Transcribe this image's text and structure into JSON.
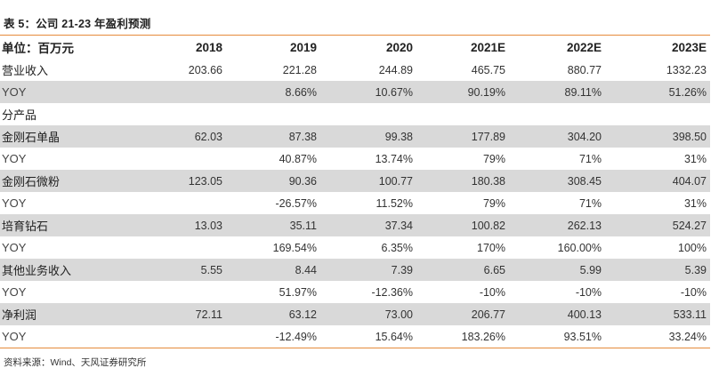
{
  "caption": "表 5：公司 21-23 年盈利预测",
  "header": [
    "单位：百万元",
    "2018",
    "2019",
    "2020",
    "2021E",
    "2022E",
    "2023E"
  ],
  "rows": [
    {
      "label": "营业收入",
      "values": [
        "203.66",
        "221.28",
        "244.89",
        "465.75",
        "880.77",
        "1332.23"
      ],
      "shaded": false
    },
    {
      "label": "YOY",
      "values": [
        "",
        "8.66%",
        "10.67%",
        "90.19%",
        "89.11%",
        "51.26%"
      ],
      "shaded": true
    },
    {
      "label": "分产品",
      "values": [
        "",
        "",
        "",
        "",
        "",
        ""
      ],
      "shaded": false
    },
    {
      "label": "金刚石单晶",
      "values": [
        "62.03",
        "87.38",
        "99.38",
        "177.89",
        "304.20",
        "398.50"
      ],
      "shaded": true
    },
    {
      "label": "YOY",
      "values": [
        "",
        "40.87%",
        "13.74%",
        "79%",
        "71%",
        "31%"
      ],
      "shaded": false
    },
    {
      "label": "金刚石微粉",
      "values": [
        "123.05",
        "90.36",
        "100.77",
        "180.38",
        "308.45",
        "404.07"
      ],
      "shaded": true
    },
    {
      "label": "YOY",
      "values": [
        "",
        "-26.57%",
        "11.52%",
        "79%",
        "71%",
        "31%"
      ],
      "shaded": false
    },
    {
      "label": "培育钻石",
      "values": [
        "13.03",
        "35.11",
        "37.34",
        "100.82",
        "262.13",
        "524.27"
      ],
      "shaded": true
    },
    {
      "label": "YOY",
      "values": [
        "",
        "169.54%",
        "6.35%",
        "170%",
        "160.00%",
        "100%"
      ],
      "shaded": false
    },
    {
      "label": "其他业务收入",
      "values": [
        "5.55",
        "8.44",
        "7.39",
        "6.65",
        "5.99",
        "5.39"
      ],
      "shaded": true
    },
    {
      "label": "YOY",
      "values": [
        "",
        "51.97%",
        "-12.36%",
        "-10%",
        "-10%",
        "-10%"
      ],
      "shaded": false
    },
    {
      "label": "净利润",
      "values": [
        "72.11",
        "63.12",
        "73.00",
        "206.77",
        "400.13",
        "533.11"
      ],
      "shaded": true
    },
    {
      "label": "YOY",
      "values": [
        "",
        "-12.49%",
        "15.64%",
        "183.26%",
        "93.51%",
        "33.24%"
      ],
      "shaded": false
    }
  ],
  "source": "资料来源：Wind、天风证券研究所",
  "colors": {
    "accent_rule": "#e58a3a",
    "row_shade": "#d9d9d9"
  }
}
